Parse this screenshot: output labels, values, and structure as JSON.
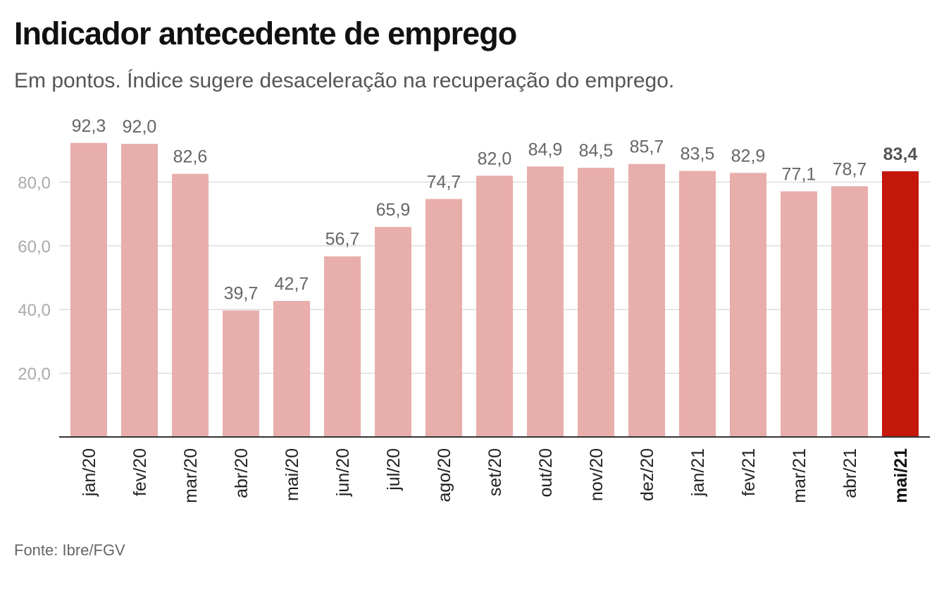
{
  "chart_data": {
    "type": "bar",
    "title": "Indicador antecedente de emprego",
    "subtitle": "Em pontos. Índice sugere desaceleração na recuperação do emprego.",
    "source": "Fonte: Ibre/FGV",
    "categories": [
      "jan/20",
      "fev/20",
      "mar/20",
      "abr/20",
      "mai/20",
      "jun/20",
      "jul/20",
      "ago/20",
      "set/20",
      "out/20",
      "nov/20",
      "dez/20",
      "jan/21",
      "fev/21",
      "mar/21",
      "abr/21",
      "mai/21"
    ],
    "values": [
      92.3,
      92.0,
      82.6,
      39.7,
      42.7,
      56.7,
      65.9,
      74.7,
      82.0,
      84.9,
      84.5,
      85.7,
      83.5,
      82.9,
      77.1,
      78.7,
      83.4
    ],
    "value_labels": [
      "92,3",
      "92,0",
      "82,6",
      "39,7",
      "42,7",
      "56,7",
      "65,9",
      "74,7",
      "82,0",
      "84,9",
      "84,5",
      "85,7",
      "83,5",
      "82,9",
      "77,1",
      "78,7",
      "83,4"
    ],
    "highlight_index": 16,
    "yticks": [
      20,
      40,
      60,
      80
    ],
    "ytick_labels": [
      "20,0",
      "40,0",
      "60,0",
      "80,0"
    ],
    "ylim": [
      0,
      100
    ],
    "grid": true,
    "colors": {
      "bar": "#e8aeab",
      "highlight": "#c4170c",
      "grid": "#dddddd",
      "axis": "#333333"
    }
  }
}
